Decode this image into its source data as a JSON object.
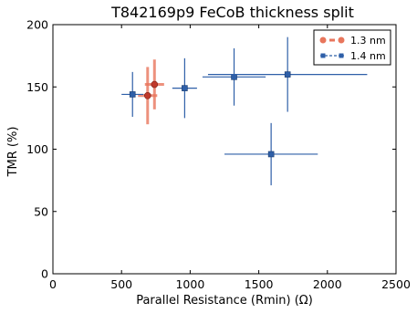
{
  "chart_data": {
    "type": "scatter",
    "title": "T842169p9 FeCoB thickness split",
    "xlabel": "Parallel Resistance (Rmin) (Ω)",
    "ylabel": "TMR (%)",
    "xlim": [
      0,
      2500
    ],
    "ylim": [
      0,
      200
    ],
    "x_ticks": [
      "0",
      "500",
      "1000",
      "1500",
      "2000",
      "2500"
    ],
    "y_ticks": [
      "0",
      "50",
      "100",
      "150",
      "200"
    ],
    "grid": false,
    "legend_position": "top-right",
    "error_bars": true,
    "series": [
      {
        "name": "1.3 nm",
        "color": "#e8765c",
        "points": [
          {
            "x": 690,
            "y": 143,
            "xerr": 70,
            "yerr": 23
          },
          {
            "x": 740,
            "y": 152,
            "xerr": 70,
            "yerr": 20
          }
        ]
      },
      {
        "name": "1.4 nm",
        "color": "#2e5fa8",
        "points": [
          {
            "x": 580,
            "y": 144,
            "xerr": 80,
            "yerr": 18
          },
          {
            "x": 960,
            "y": 149,
            "xerr": 90,
            "yerr": 24
          },
          {
            "x": 1320,
            "y": 158,
            "xerr": 230,
            "yerr": 23
          },
          {
            "x": 1710,
            "y": 160,
            "xerr": 580,
            "yerr": 30
          },
          {
            "x": 1590,
            "y": 96,
            "xerr": 340,
            "yerr": 25
          }
        ]
      }
    ]
  }
}
